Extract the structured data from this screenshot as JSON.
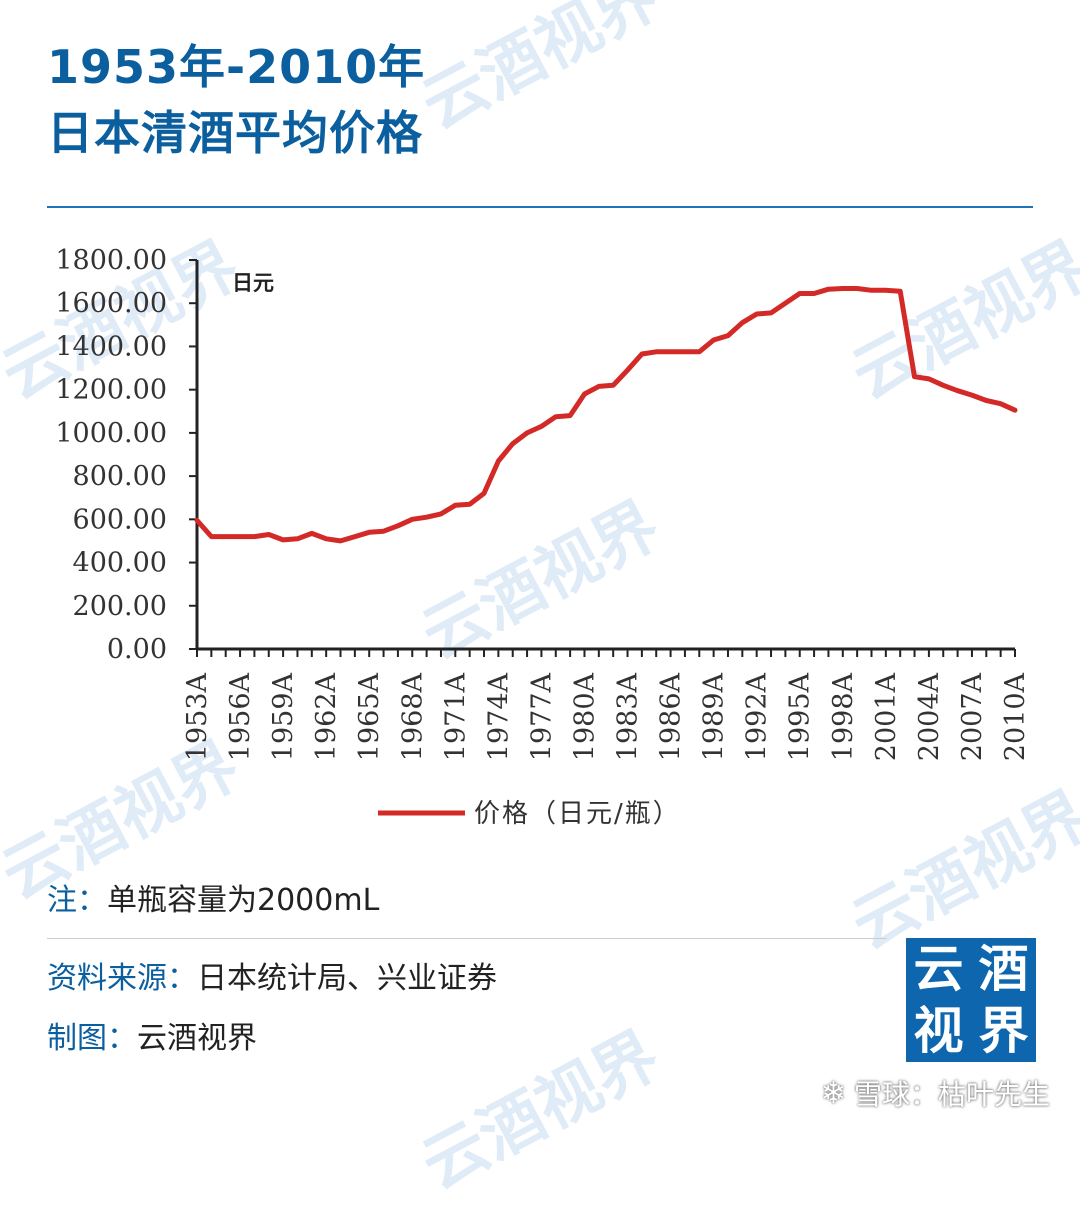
{
  "title": {
    "line1": "1953年-2010年",
    "line2": "日本清酒平均价格"
  },
  "watermark_text": "云酒视界",
  "chart_data": {
    "type": "line",
    "ylim": [
      0,
      1800
    ],
    "yticks": [
      "0.00",
      "200.00",
      "400.00",
      "600.00",
      "800.00",
      "1000.00",
      "1200.00",
      "1400.00",
      "1600.00",
      "1800.00"
    ],
    "unit_label": "日元",
    "xtick_labels": [
      "1953A",
      "1956A",
      "1959A",
      "1962A",
      "1965A",
      "1968A",
      "1971A",
      "1974A",
      "1977A",
      "1980A",
      "1983A",
      "1986A",
      "1989A",
      "1992A",
      "1995A",
      "1998A",
      "2001A",
      "2004A",
      "2007A",
      "2010A"
    ],
    "x": [
      1953,
      1954,
      1955,
      1956,
      1957,
      1958,
      1959,
      1960,
      1961,
      1962,
      1963,
      1964,
      1965,
      1966,
      1967,
      1968,
      1969,
      1970,
      1971,
      1972,
      1973,
      1974,
      1975,
      1976,
      1977,
      1978,
      1979,
      1980,
      1981,
      1982,
      1983,
      1984,
      1985,
      1986,
      1987,
      1988,
      1989,
      1990,
      1991,
      1992,
      1993,
      1994,
      1995,
      1996,
      1997,
      1998,
      1999,
      2000,
      2001,
      2002,
      2003,
      2004,
      2005,
      2006,
      2007,
      2008,
      2009,
      2010
    ],
    "series": [
      {
        "name": "价格（日元/瓶）",
        "color": "#d32a27",
        "values": [
          595,
          520,
          520,
          520,
          520,
          530,
          505,
          510,
          535,
          510,
          500,
          520,
          540,
          545,
          570,
          600,
          610,
          625,
          665,
          670,
          720,
          870,
          950,
          1000,
          1030,
          1075,
          1080,
          1180,
          1215,
          1220,
          1290,
          1365,
          1375,
          1375,
          1375,
          1375,
          1430,
          1450,
          1510,
          1550,
          1555,
          1600,
          1645,
          1645,
          1665,
          1668,
          1668,
          1660,
          1660,
          1655,
          1260,
          1250,
          1220,
          1195,
          1175,
          1150,
          1135,
          1105
        ]
      }
    ],
    "legend_position": "bottom-center",
    "grid": false
  },
  "notes": {
    "note_label": "注：",
    "note_text": "单瓶容量为2000mL",
    "source_label": "资料来源：",
    "source_text": "日本统计局、兴业证券",
    "credit_label": "制图：",
    "credit_text": "云酒视界"
  },
  "logo": {
    "chars": [
      "云",
      "酒",
      "视",
      "界"
    ],
    "bg": "#0e66ae"
  },
  "footer": {
    "icon": "snowball-icon",
    "text": "雪球：枯叶先生"
  },
  "colors": {
    "accent": "#0b5f9f",
    "line": "#d32a27"
  }
}
